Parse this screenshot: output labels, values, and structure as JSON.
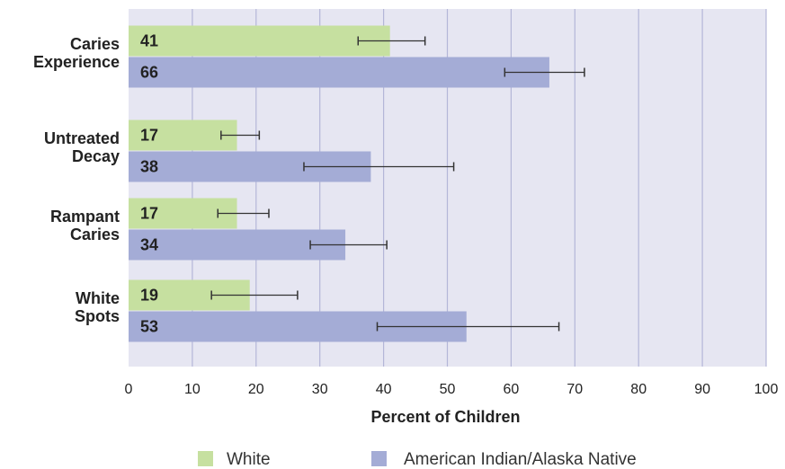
{
  "chart_data": {
    "type": "bar",
    "orientation": "horizontal",
    "title": "",
    "categories": [
      [
        "Caries",
        "Experience"
      ],
      [
        "Untreated",
        "Decay"
      ],
      [
        "Rampant",
        "Caries"
      ],
      [
        "White",
        "Spots"
      ]
    ],
    "series": [
      {
        "name": "White",
        "color": "#c6e0a0",
        "values": [
          41,
          17,
          17,
          19
        ],
        "labels": [
          "41",
          "17",
          "17",
          "19"
        ],
        "error_low": [
          36,
          14.5,
          14,
          13
        ],
        "error_high": [
          46.5,
          20.5,
          22,
          26.5
        ]
      },
      {
        "name": "American Indian/Alaska Native",
        "color": "#a4acd6",
        "values": [
          66,
          38,
          34,
          53
        ],
        "labels": [
          "66",
          "38",
          "34",
          "53"
        ],
        "error_low": [
          59,
          27.5,
          28.5,
          39
        ],
        "error_high": [
          71.5,
          51,
          40.5,
          67.5
        ]
      }
    ],
    "xlabel": "Percent of Children",
    "xlim": [
      0,
      100
    ],
    "xticks": [
      "0",
      "10",
      "20",
      "30",
      "40",
      "50",
      "60",
      "70",
      "80",
      "90",
      "100"
    ],
    "grid": true,
    "legend_position": "bottom",
    "colors": {
      "plot_background": "#e6e6f2",
      "gridline": "#b4b6d8",
      "error_bar": "#333333"
    }
  }
}
